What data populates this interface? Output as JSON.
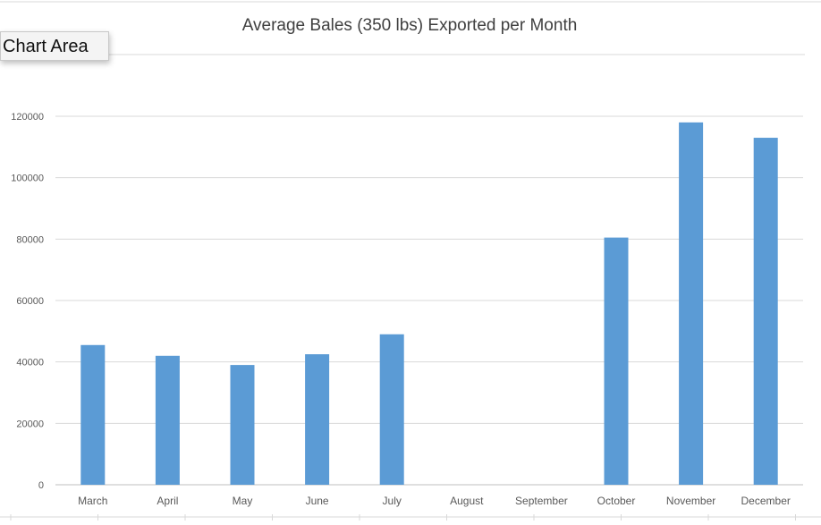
{
  "tooltip": {
    "label": "Chart Area"
  },
  "colors": {
    "bar": "#5b9bd5",
    "grid": "#d9d9d9",
    "text": "#595959",
    "title": "#404040"
  },
  "chart_data": {
    "type": "bar",
    "title": "Average Bales (350 lbs) Exported per Month",
    "xlabel": "",
    "ylabel": "",
    "categories": [
      "March",
      "April",
      "May",
      "June",
      "July",
      "August",
      "September",
      "October",
      "November",
      "December"
    ],
    "values": [
      45500,
      42000,
      39000,
      42500,
      49000,
      null,
      null,
      80500,
      118000,
      113000
    ],
    "ylim": [
      0,
      120000
    ],
    "yticks": [
      0,
      20000,
      40000,
      60000,
      80000,
      100000,
      120000
    ],
    "grid": true,
    "legend": "none"
  }
}
